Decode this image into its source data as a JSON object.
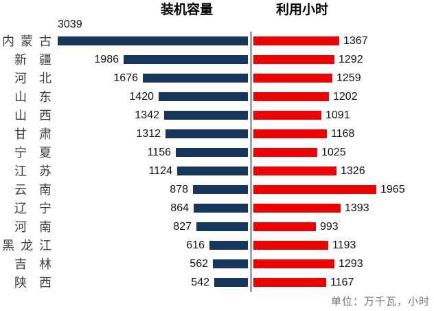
{
  "chart_data": {
    "type": "bar",
    "variant": "bidirectional-tornado",
    "orientation": "horizontal",
    "grid": false,
    "legend_position": "column-titles-top",
    "title_left": "装机容量",
    "title_right": "利用小时",
    "unit_note": "单位：万千瓦，小时",
    "categories": [
      "内蒙古",
      "新疆",
      "河北",
      "山东",
      "山西",
      "甘肃",
      "宁夏",
      "江苏",
      "云南",
      "辽宁",
      "河南",
      "黑龙江",
      "吉林",
      "陕西"
    ],
    "series": [
      {
        "name": "装机容量",
        "direction": "left",
        "color": "#17375e",
        "values": [
          3039,
          1986,
          1676,
          1420,
          1342,
          1312,
          1156,
          1124,
          878,
          864,
          827,
          616,
          562,
          542
        ]
      },
      {
        "name": "利用小时",
        "direction": "right",
        "color": "#ee0202",
        "values": [
          1367,
          1292,
          1259,
          1202,
          1091,
          1168,
          1025,
          1326,
          1965,
          1393,
          993,
          1193,
          1293,
          1167
        ]
      }
    ],
    "axis": {
      "left_max_value": 3039,
      "right_max_value": 1965,
      "shared_scale": true,
      "center_axis_color": "#a6a6a6"
    },
    "first_row_label_position": "above-bar"
  },
  "colors": {
    "capacity_bar": "#17375e",
    "hours_bar": "#ee0202",
    "center_axis": "#a6a6a6",
    "category_text": "#3d3d3d",
    "value_text": "#111111",
    "footnote_text": "#737373"
  }
}
